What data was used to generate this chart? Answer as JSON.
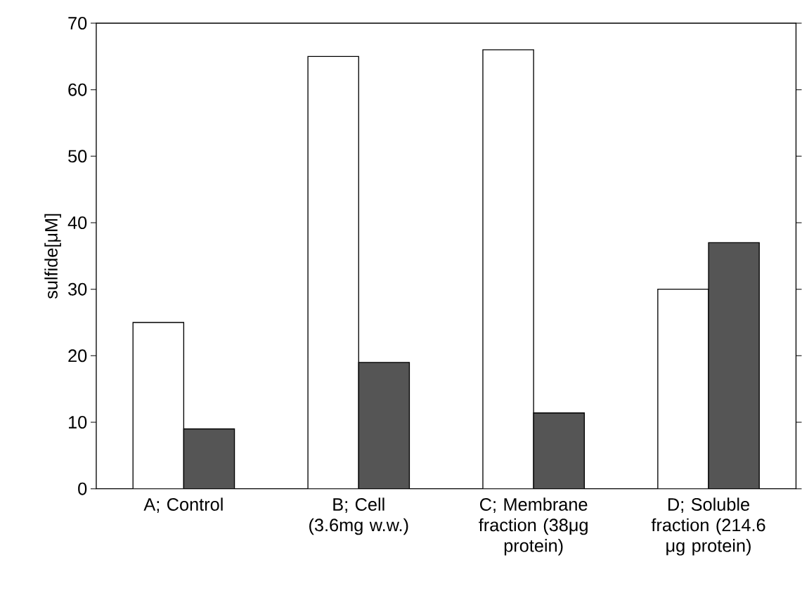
{
  "chart_data": {
    "type": "bar",
    "ylabel": "sulfide[μM]",
    "categories": [
      "A; Control",
      "B; Cell (3.6mg w.w.)",
      "C; Membrane fraction (38μg protein)",
      "D; Soluble fraction (214.6 μg protein)"
    ],
    "series": [
      {
        "color": "#ffffff",
        "values": [
          25,
          65,
          66,
          30
        ]
      },
      {
        "color": "#555555",
        "values": [
          9,
          19,
          11.4,
          37
        ]
      }
    ],
    "ylim": [
      0,
      70
    ],
    "yticks": [
      0,
      10,
      20,
      30,
      40,
      50,
      60,
      70
    ]
  }
}
